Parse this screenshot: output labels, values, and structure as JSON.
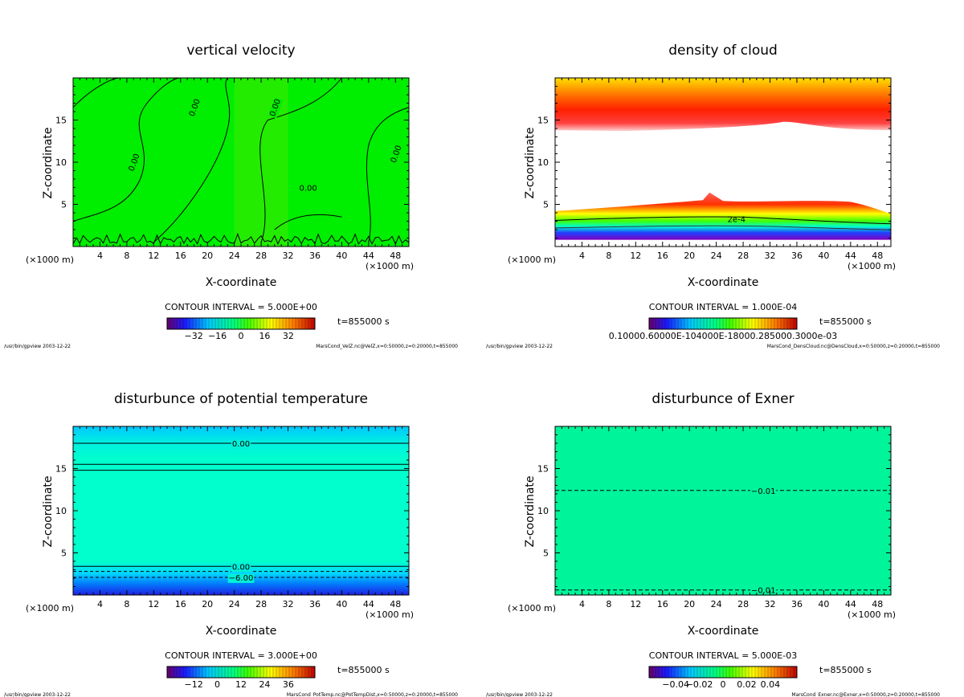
{
  "chart_data": [
    {
      "type": "heatmap",
      "title": "vertical velocity",
      "xlabel": "X-coordinate",
      "ylabel": "Z-coordinate",
      "x_unit_left": "(×1000 m)",
      "x_unit_right": "(×1000 m)",
      "x_ticks": [
        "4",
        "8",
        "12",
        "16",
        "20",
        "24",
        "28",
        "32",
        "36",
        "40",
        "44",
        "48"
      ],
      "y_ticks": [
        "5",
        "10",
        "15"
      ],
      "xlim": [
        0,
        50
      ],
      "ylim": [
        0,
        20
      ],
      "contour_interval": "CONTOUR INTERVAL = 5.000E+00",
      "time_label": "t=855000 s",
      "colorbar_ticks": [
        "−32",
        "−16",
        "0",
        "16",
        "32"
      ],
      "contour_labels": [
        "0.00",
        "0.00",
        "0.00",
        "0.00",
        "0.00"
      ],
      "footer_left": "/usr/bin/gpview  2003-12-22",
      "footer_right": "MarsCond_VelZ.nc@VelZ,x=0:50000,z=0:20000,t=855000",
      "field_color": "#00ee00"
    },
    {
      "type": "heatmap",
      "title": "density of cloud",
      "xlabel": "X-coordinate",
      "ylabel": "Z-coordinate",
      "x_unit_left": "(×1000 m)",
      "x_unit_right": "(×1000 m)",
      "x_ticks": [
        "4",
        "8",
        "12",
        "16",
        "20",
        "24",
        "28",
        "32",
        "36",
        "40",
        "44",
        "48"
      ],
      "y_ticks": [
        "5",
        "10",
        "15"
      ],
      "xlim": [
        0,
        50
      ],
      "ylim": [
        0,
        20
      ],
      "contour_interval": "CONTOUR INTERVAL = 1.000E-04",
      "time_label": "t=855000 s",
      "colorbar_ticks": [
        "0.10000.60000E-104000E-18000.285000.3000e-03"
      ],
      "contour_labels": [
        "2e-4"
      ],
      "footer_left": "/usr/bin/gpview  2003-12-22",
      "footer_right": "MarsCond_DensCloud.nc@DensCloud,x=0:50000,z=0:20000,t=855000",
      "field_color": "#ffffff"
    },
    {
      "type": "heatmap",
      "title": "disturbunce of potential temperature",
      "xlabel": "X-coordinate",
      "ylabel": "Z-coordinate",
      "x_unit_left": "(×1000 m)",
      "x_unit_right": "(×1000 m)",
      "x_ticks": [
        "4",
        "8",
        "12",
        "16",
        "20",
        "24",
        "28",
        "32",
        "36",
        "40",
        "44",
        "48"
      ],
      "y_ticks": [
        "5",
        "10",
        "15"
      ],
      "xlim": [
        0,
        50
      ],
      "ylim": [
        0,
        20
      ],
      "contour_interval": "CONTOUR INTERVAL = 3.000E+00",
      "time_label": "t=855000 s",
      "colorbar_ticks": [
        "−12",
        "0",
        "12",
        "24",
        "36"
      ],
      "contour_labels": [
        "0.00",
        "0.00",
        "−6.00"
      ],
      "footer_left": "/usr/bin/gpview  2003-12-22",
      "footer_right": "MarsCond_PotTemp.nc@PotTempDist,x=0:50000,z=0:20000,t=855000",
      "field_color": "#00ffcc"
    },
    {
      "type": "heatmap",
      "title": "disturbunce of Exner",
      "xlabel": "X-coordinate",
      "ylabel": "Z-coordinate",
      "x_unit_left": "(×1000 m)",
      "x_unit_right": "(×1000 m)",
      "x_ticks": [
        "4",
        "8",
        "12",
        "16",
        "20",
        "24",
        "28",
        "32",
        "36",
        "40",
        "44",
        "48"
      ],
      "y_ticks": [
        "5",
        "10",
        "15"
      ],
      "xlim": [
        0,
        50
      ],
      "ylim": [
        0,
        20
      ],
      "contour_interval": "CONTOUR INTERVAL = 5.000E-03",
      "time_label": "t=855000 s",
      "colorbar_ticks": [
        "−0.04",
        "−0.02",
        "0",
        "0.02",
        "0.04"
      ],
      "contour_labels": [
        "−0.01",
        "−0.01"
      ],
      "footer_left": "/usr/bin/gpview  2003-12-22",
      "footer_right": "MarsCond_Exner.nc@Exner,x=0:50000,z=0:20000,t=855000",
      "field_color": "#00f49a"
    }
  ]
}
